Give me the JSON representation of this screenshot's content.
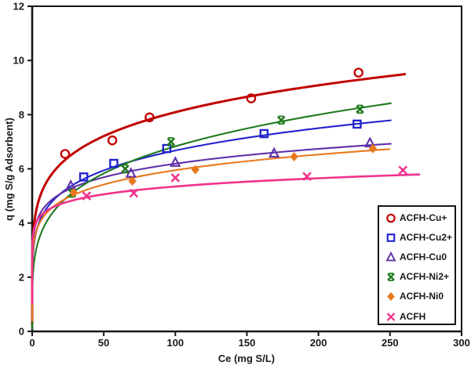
{
  "chart_data": {
    "type": "scatter",
    "title": "",
    "xlabel": "Ce (mg S/L)",
    "ylabel": "q (mg S/g Adsorbent)",
    "xlim": [
      0,
      300
    ],
    "ylim": [
      0,
      12
    ],
    "x_ticks": [
      0,
      50,
      100,
      150,
      200,
      250,
      300
    ],
    "y_ticks": [
      0,
      2,
      4,
      6,
      8,
      10,
      12
    ],
    "grid": false,
    "legend_position": "inside-bottom-right",
    "axis_color": "#161616",
    "series": [
      {
        "name": "ACFH-Cu+",
        "color": "#C00000",
        "marker": "open-circle",
        "line_width": 3,
        "points": [
          [
            23,
            6.55
          ],
          [
            56,
            7.05
          ],
          [
            82,
            7.9
          ],
          [
            153,
            8.6
          ],
          [
            228,
            9.55
          ]
        ],
        "trend": {
          "type": "power",
          "k": 3.75,
          "exp": 0.167,
          "x_end": 261
        }
      },
      {
        "name": "ACFH-Cu2+",
        "color": "#2222CC",
        "marker": "open-square",
        "line_width": 2.1,
        "points": [
          [
            36,
            5.7
          ],
          [
            57,
            6.2
          ],
          [
            94,
            6.75
          ],
          [
            162,
            7.3
          ],
          [
            227,
            7.65
          ]
        ],
        "trend": {
          "type": "power",
          "k": 3.08,
          "exp": 0.168,
          "x_end": 251
        }
      },
      {
        "name": "ACFH-Cu0",
        "color": "#6030A8",
        "marker": "open-triangle",
        "line_width": 2.1,
        "points": [
          [
            27,
            5.37
          ],
          [
            69,
            5.83
          ],
          [
            100,
            6.23
          ],
          [
            169,
            6.57
          ],
          [
            236,
            6.95
          ]
        ],
        "trend": {
          "type": "power",
          "k": 3.53,
          "exp": 0.122,
          "x_end": 251
        }
      },
      {
        "name": "ACFH-Ni2+",
        "color": "#1F7A1E",
        "marker": "x-star",
        "line_width": 2.1,
        "points": [
          [
            28,
            5.1
          ],
          [
            65,
            6.0
          ],
          [
            97,
            7.0
          ],
          [
            174,
            7.8
          ],
          [
            229,
            8.2
          ]
        ],
        "trend": {
          "type": "power",
          "k": 2.39,
          "exp": 0.228,
          "x_end": 251
        }
      },
      {
        "name": "ACFH-Ni0",
        "color": "#E8791F",
        "marker": "filled-diamond",
        "line_width": 2.1,
        "points": [
          [
            29,
            5.12
          ],
          [
            70,
            5.55
          ],
          [
            114,
            5.97
          ],
          [
            183,
            6.45
          ],
          [
            238,
            6.75
          ]
        ],
        "trend": {
          "type": "power",
          "k": 3.21,
          "exp": 0.134,
          "x_end": 250
        }
      },
      {
        "name": "ACFH",
        "color": "#F0328C",
        "marker": "x",
        "line_width": 2.6,
        "points": [
          [
            38,
            5.0
          ],
          [
            71,
            5.1
          ],
          [
            100,
            5.67
          ],
          [
            192,
            5.72
          ],
          [
            259,
            5.95
          ]
        ],
        "trend": {
          "type": "power",
          "k": 3.7,
          "exp": 0.08,
          "x_end": 271
        }
      }
    ]
  }
}
